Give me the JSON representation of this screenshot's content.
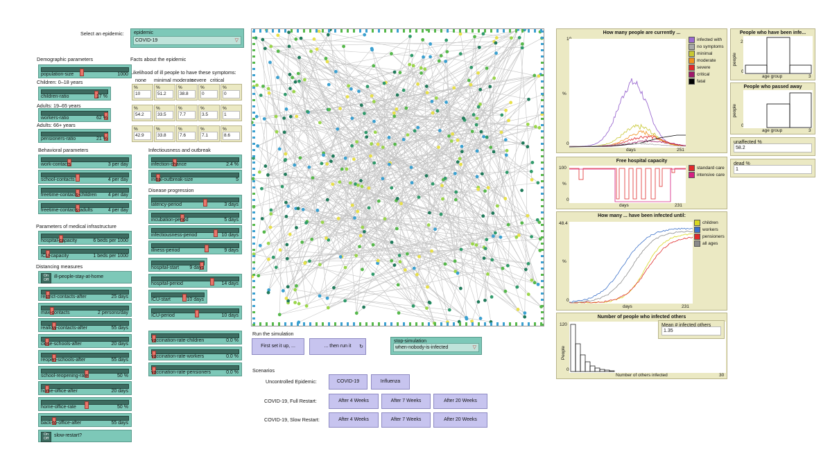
{
  "epidemic": {
    "select_label": "Select an epidemic:",
    "chooser_name": "epidemic",
    "value": "COVID-19"
  },
  "demographic": {
    "header": "Demographic parameters",
    "population": {
      "name": "population-size",
      "value": "1000",
      "level": 0.45
    },
    "children_label": "Children: 0–18 years",
    "children": {
      "name": "children-ratio",
      "value": "17 %",
      "level": 0.82
    },
    "adults_label": "Adults: 19–65 years",
    "workers": {
      "name": "workers-ratio",
      "value": "62 %",
      "level": 0.97
    },
    "seniors_label": "Adults: 66+ years",
    "pensioners": {
      "name": "pensioners-ratio",
      "value": "21 %",
      "level": 0.97
    }
  },
  "facts": {
    "header": "Facts about the epidemic",
    "likelihood": "Likelihood of ill people to have these symptoms:",
    "columns": [
      "none",
      "minimal",
      "moderate",
      "severe",
      "critical"
    ],
    "rows": [
      {
        "h": "%",
        "values": [
          "10",
          "51.2",
          "38.8",
          "0",
          "0"
        ]
      },
      {
        "h": "%",
        "values": [
          "54.2",
          "33.5",
          "7.7",
          "3.5",
          "1"
        ]
      },
      {
        "h": "%",
        "values": [
          "42.9",
          "33.8",
          "7.6",
          "7.1",
          "8.6"
        ]
      }
    ]
  },
  "behavioral": {
    "header": "Behavioral parameters",
    "sliders": [
      {
        "name": "work-contacts",
        "value": "3 per day",
        "level": 0.3
      },
      {
        "name": "school-contacts",
        "value": "4 per day",
        "level": 0.4
      },
      {
        "name": "freetime-contacts-children",
        "value": "4 per day",
        "level": 0.4
      },
      {
        "name": "freetime-contacts-adults",
        "value": "4 per day",
        "level": 0.4
      }
    ]
  },
  "medical": {
    "header": "Parameters of medical infrastructure",
    "sliders": [
      {
        "name": "hospital-capacity",
        "value": "6 beds per 1000",
        "level": 0.2
      },
      {
        "name": "ICU-capacity",
        "value": "1 beds per 1000",
        "level": 0.05
      }
    ]
  },
  "distancing": {
    "header": "Distancing measures",
    "switch1": {
      "name": "ill-people-stay-at-home",
      "on": "On",
      "off": "Off"
    },
    "sliders": [
      {
        "name": "restrict-contacts-after",
        "value": "25 days",
        "level": 0.05
      },
      {
        "name": "max-contacts",
        "value": "2 persons/day",
        "level": 0.1
      },
      {
        "name": "reallow-contacts-after",
        "value": "55 days",
        "level": 0.12
      },
      {
        "name": "close-schools-after",
        "value": "20 days",
        "level": 0.04
      },
      {
        "name": "reopen-schools-after",
        "value": "55 days",
        "level": 0.12
      },
      {
        "name": "school-reopening-rate",
        "value": "50 %",
        "level": 0.5
      },
      {
        "name": "home-office-after",
        "value": "20 days",
        "level": 0.04
      },
      {
        "name": "home-office-rate",
        "value": "50 %",
        "level": 0.5
      },
      {
        "name": "back-to-office-after",
        "value": "55 days",
        "level": 0.12
      }
    ],
    "switch2": {
      "name": "slow-restart?",
      "on": "On",
      "off": "Off"
    }
  },
  "infectiousness": {
    "header": "Infectiousness and outbreak",
    "sliders": [
      {
        "name": "infection-chance",
        "value": "2.4 %",
        "level": 0.24
      },
      {
        "name": "initial-outbreak-size",
        "value": "5",
        "level": 0.05
      }
    ]
  },
  "progression": {
    "header": "Disease progression",
    "sliders": [
      {
        "name": "latency-period",
        "value": "3 days",
        "level": 0.6
      },
      {
        "name": "incubation-period",
        "value": "5 days",
        "level": 0.33
      },
      {
        "name": "infectiousness-period",
        "value": "10 days",
        "level": 0.72
      },
      {
        "name": "illness-period",
        "value": "9 days",
        "level": 0.62
      }
    ],
    "monitors_a": [
      {
        "name": "hospital-start",
        "value": "9 days",
        "level": 0.95
      }
    ],
    "monitors_b": [
      {
        "name": "hospital-period",
        "value": "14 days",
        "level": 0.68
      }
    ],
    "monitors_c": [
      {
        "name": "ICU-start",
        "value": "10 days",
        "level": 0.6
      }
    ],
    "monitors_d": [
      {
        "name": "ICU-period",
        "value": "10 days",
        "level": 0.5
      }
    ]
  },
  "vaccination": {
    "sliders": [
      {
        "name": "vaccination-rate-children",
        "value": "0.0 %",
        "level": 0.0
      },
      {
        "name": "vaccination-rate-workers",
        "value": "0.0 %",
        "level": 0.0
      },
      {
        "name": "vaccination-rate-pensioners",
        "value": "0.0 %",
        "level": 0.0
      }
    ]
  },
  "run": {
    "header": "Run the simulation",
    "setup": "First set it up, ...",
    "go": "... then run it",
    "stop_name": "stop-simulation",
    "stop_value": "when-nobody-is-infected"
  },
  "scenarios": {
    "header": "Scenarios",
    "uncontrolled_label": "Uncontrolled Epidemic:",
    "covid": "COVID-19",
    "influenza": "Influenza",
    "full_label": "COVID-19, Full Restart:",
    "slow_label": "COVID-19, Slow Restart:",
    "weeks": [
      "After 4 Weeks",
      "After 7 Weeks",
      "After 20 Weeks"
    ]
  },
  "plots": {
    "current": {
      "title": "How many people are currently ...",
      "ymax": "10",
      "y0": "0",
      "x0": "0",
      "xmax": "251",
      "xlabel": "days",
      "ylabel": "%",
      "legend": [
        {
          "name": "infected with",
          "color": "#9b6ad0"
        },
        {
          "name": "no symptoms",
          "color": "#a8a8a8"
        },
        {
          "name": "minimal",
          "color": "#c8c832"
        },
        {
          "name": "moderate",
          "color": "#f0901e"
        },
        {
          "name": "severe",
          "color": "#e02a2a"
        },
        {
          "name": "critical",
          "color": "#a0186a"
        },
        {
          "name": "fatal",
          "color": "#000000"
        }
      ]
    },
    "infected_hist": {
      "title": "People who have been infe...",
      "ymax": "276",
      "y0": "0",
      "x0": "0",
      "xmax": "3",
      "xlabel": "age group",
      "ylabel": "people"
    },
    "passed_hist": {
      "title": "People who passed away",
      "y0": "0",
      "x0": "0",
      "xmax": "3",
      "xlabel": "age group",
      "ylabel": "people"
    },
    "unaffected": {
      "name": "unaffected %",
      "value": "58.2"
    },
    "dead": {
      "name": "dead %",
      "value": "1"
    },
    "hospital": {
      "title": "Free hospital capacity",
      "ymax": "100",
      "y0": "0",
      "x0": "0",
      "xmax": "231",
      "xlabel": "days",
      "ylabel": "%",
      "legend": [
        {
          "name": "standard care",
          "color": "#e02a2a"
        },
        {
          "name": "intensive care",
          "color": "#d61f82"
        }
      ]
    },
    "infected_until": {
      "title": "How many ... have been infected until:",
      "ymax": "48.4",
      "y0": "0",
      "x0": "0",
      "xmax": "231",
      "xlabel": "days",
      "ylabel": "%",
      "legend": [
        {
          "name": "children",
          "color": "#d8d820"
        },
        {
          "name": "workers",
          "color": "#3a70c8"
        },
        {
          "name": "pensioners",
          "color": "#e02a2a"
        },
        {
          "name": "all ages",
          "color": "#8a8a8a"
        }
      ]
    },
    "infected_others": {
      "title": "Number of people who infected others",
      "ymax": "120",
      "y0": "0",
      "x0": "0",
      "xmax": "30",
      "xlabel": "Number of others infected",
      "ylabel": "People",
      "mean_label": "Mean # infected others",
      "mean_value": "1.35"
    }
  }
}
